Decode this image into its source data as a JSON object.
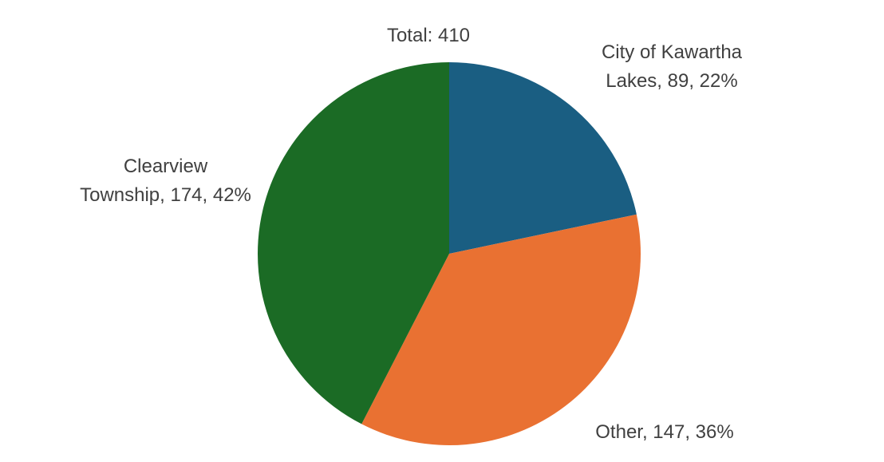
{
  "chart_data": {
    "type": "pie",
    "title": "Total: 410",
    "categories": [
      "City of Kawartha Lakes",
      "Other",
      "Clearview Township"
    ],
    "values": [
      89,
      147,
      174
    ],
    "value_labels": [
      "City of Kawartha Lakes, 89, 22%",
      "Other, 147, 36%",
      "Clearview Township, 174, 42%"
    ],
    "colors": [
      "#1a5e82",
      "#e97132",
      "#1b6b25"
    ]
  }
}
